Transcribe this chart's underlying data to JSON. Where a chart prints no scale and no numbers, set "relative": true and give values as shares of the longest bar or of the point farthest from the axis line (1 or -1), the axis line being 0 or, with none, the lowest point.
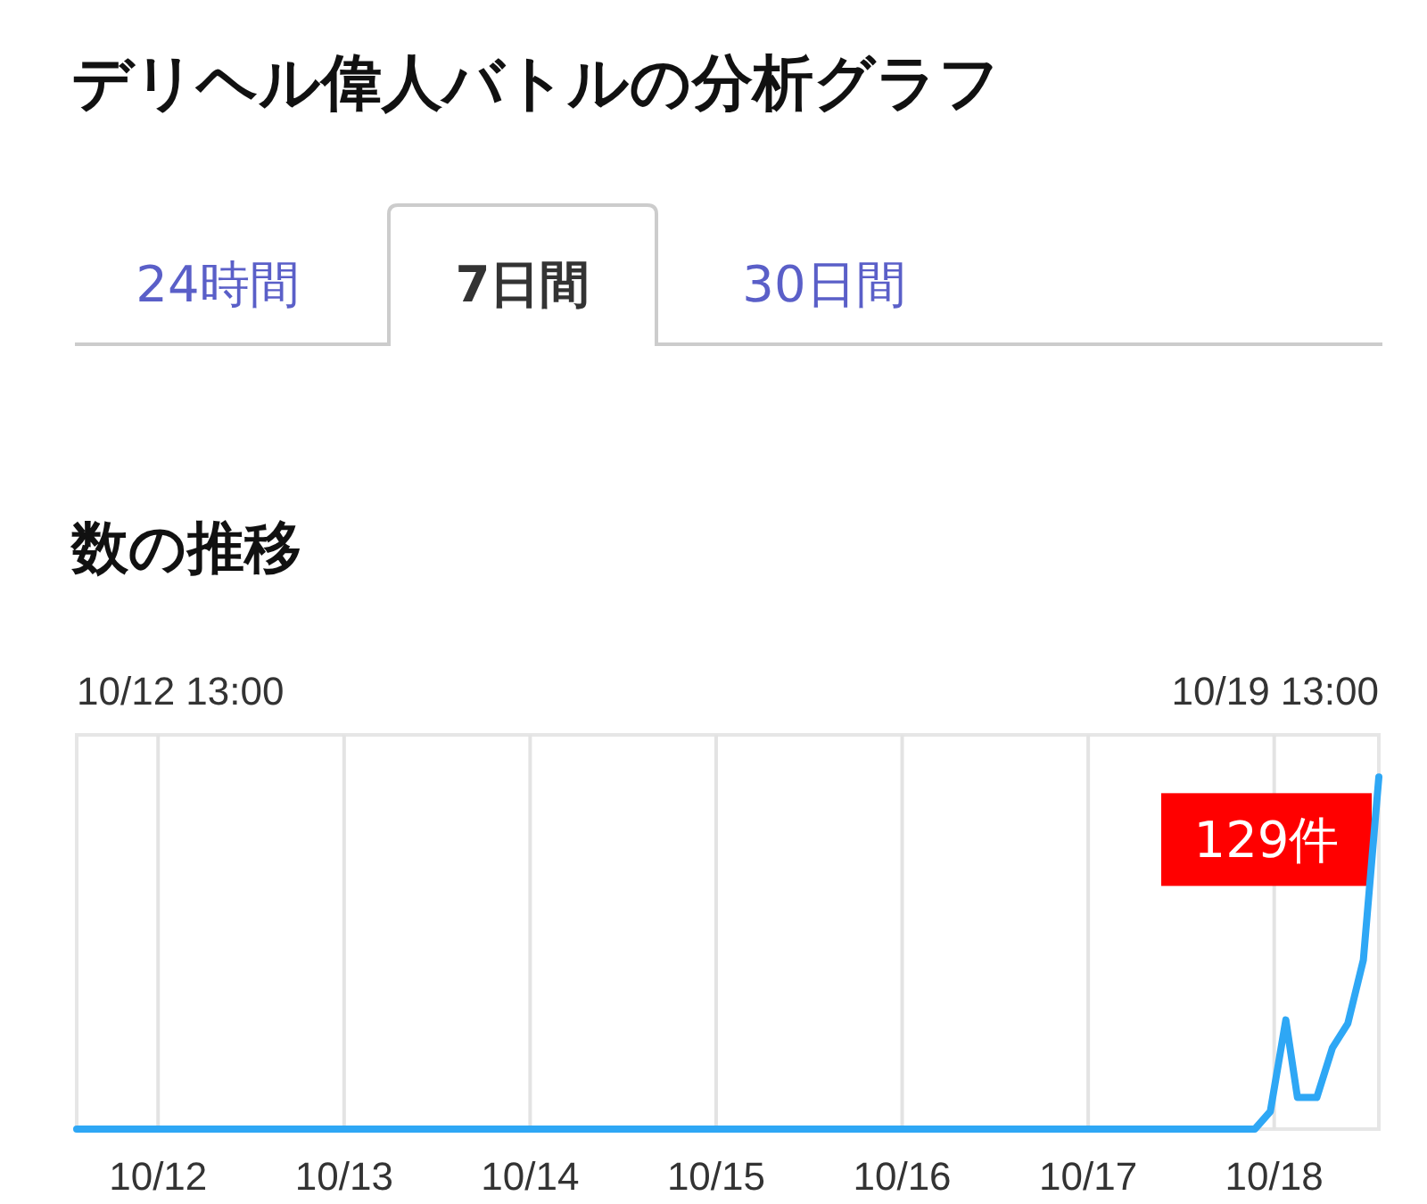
{
  "chart_data": {
    "type": "line",
    "title": "デリヘル偉人バトルの分析グラフ",
    "subtitle": "数の推移",
    "annotations": [
      "24時間",
      "7日間",
      "30日間",
      "10/12 13:00",
      "10/19 13:00",
      {
        "text": "129件",
        "x": "--10-19T13:00",
        "y": 1
      }
    ],
    "x": [
      "--10-12T13:00",
      "--10-18T21:00",
      "--10-18T23:00",
      "--10-19T01:00",
      "--10-19T02:30",
      "--10-19T05:00",
      "--10-19T07:00",
      "--10-19T09:00",
      "--10-19T11:00",
      "--10-19T13:00"
    ],
    "series": [
      {
        "color": "#2ea7f5",
        "values": [
          0,
          0,
          0.05,
          0.31,
          0.09,
          0.09,
          0.23,
          0.3,
          0.48,
          1
        ]
      }
    ],
    "relative": true,
    "xlim": [
      "--10-12T13:00",
      "--10-19T13:00"
    ],
    "xticks": [
      {
        "value": "--10-12T23:30",
        "label": "10/12"
      },
      {
        "value": "--10-13T23:30",
        "label": "10/13"
      },
      {
        "value": "--10-14T23:30",
        "label": "10/14"
      },
      {
        "value": "--10-15T23:30",
        "label": "10/15"
      },
      {
        "value": "--10-16T23:30",
        "label": "10/16"
      },
      {
        "value": "--10-17T23:30",
        "label": "10/17"
      },
      {
        "value": "--10-18T23:30",
        "label": "10/18"
      }
    ],
    "grid": "x",
    "marker": "none",
    "line_style": "solid"
  }
}
